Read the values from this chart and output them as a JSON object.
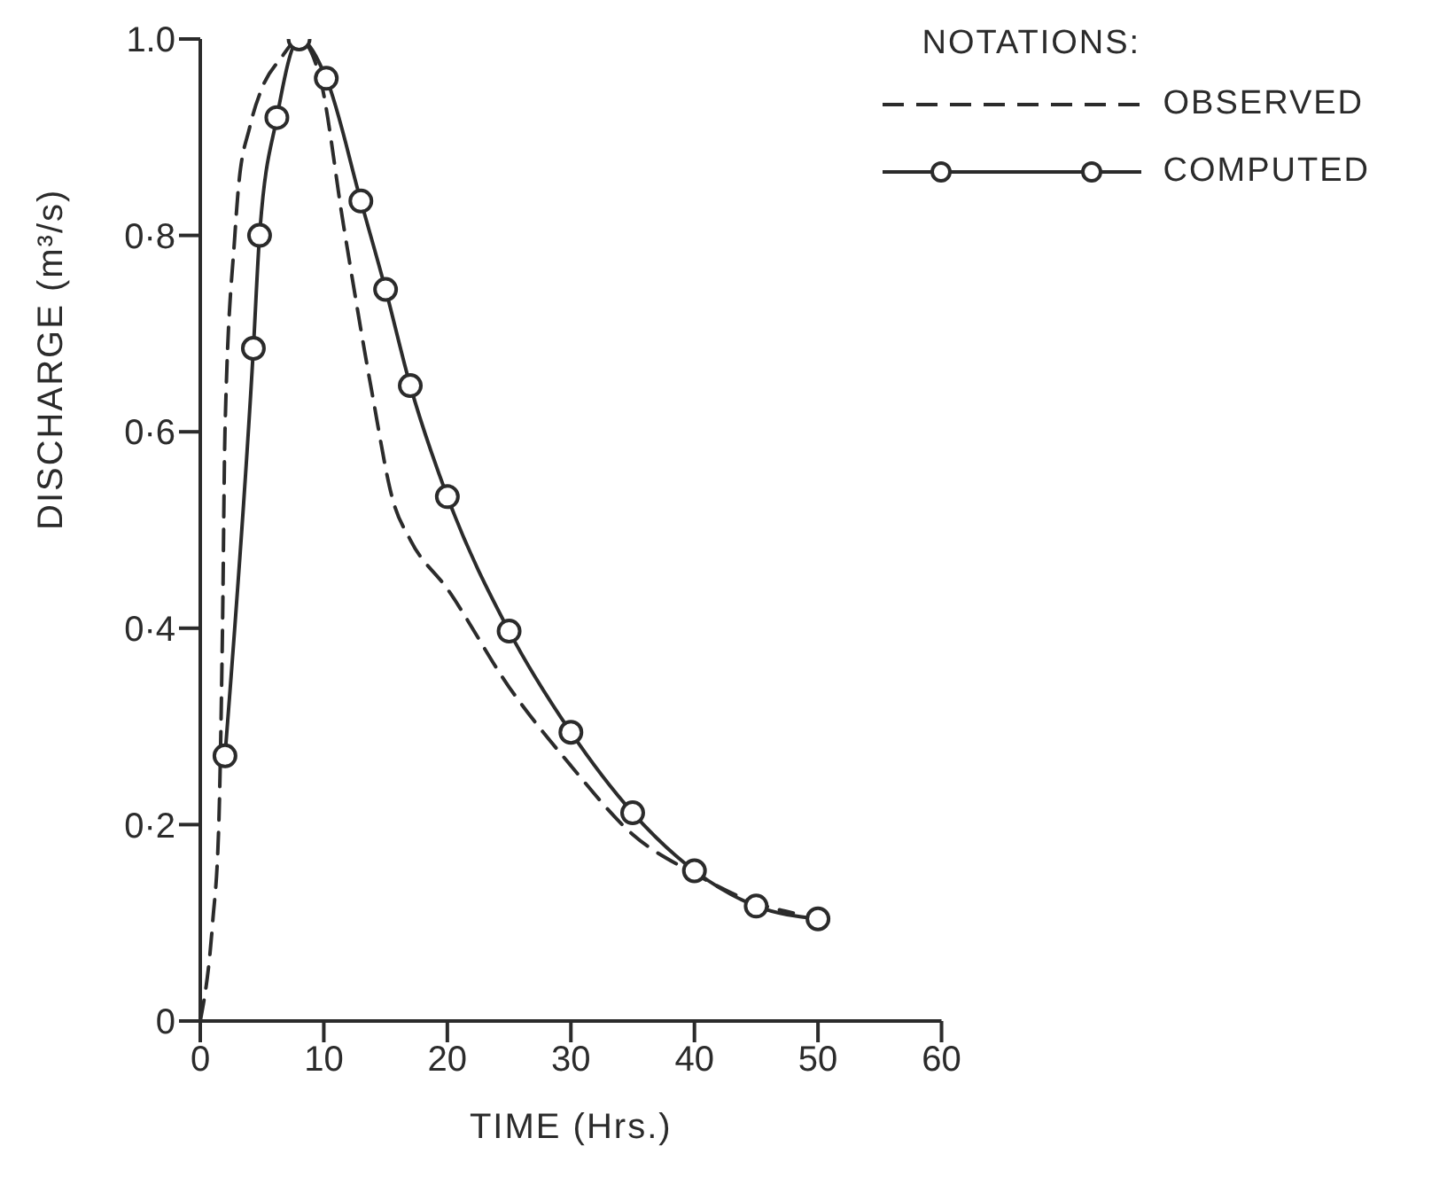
{
  "chart_data": {
    "type": "line",
    "xlabel": "TIME (Hrs.)",
    "ylabel": "DISCHARGE (m³/s)",
    "legend_title": "NOTATIONS:",
    "legend": "top right",
    "grid": false,
    "xlim": [
      0,
      60
    ],
    "xticks": [
      0,
      10,
      20,
      30,
      40,
      50,
      60
    ],
    "ylim": [
      0,
      1.0
    ],
    "yticks": [
      0,
      {
        "value": 0.2,
        "label": "0·2"
      },
      {
        "value": 0.4,
        "label": "0·4"
      },
      {
        "value": 0.6,
        "label": "0·6"
      },
      {
        "value": 0.8,
        "label": "0·8"
      },
      {
        "value": 1.0,
        "label": "1.0"
      }
    ],
    "series": [
      {
        "name": "OBSERVED",
        "color": "#2b2b2b",
        "line_style": "dashed",
        "marker": "none",
        "x": [
          0,
          1,
          1.5,
          1.8,
          2,
          2.8,
          3.1,
          4,
          5,
          6.5,
          8,
          9.7,
          11.6,
          13.9,
          15.6,
          17,
          20,
          25,
          30,
          35,
          40,
          45,
          48
        ],
        "values": [
          0,
          0.1,
          0.2,
          0.4,
          0.6,
          0.8,
          0.85,
          0.91,
          0.95,
          0.98,
          1.0,
          0.96,
          0.81,
          0.64,
          0.53,
          0.49,
          0.44,
          0.34,
          0.26,
          0.19,
          0.15,
          0.12,
          0.11
        ]
      },
      {
        "name": "COMPUTED",
        "color": "#2b2b2b",
        "line_style": "solid",
        "marker": "circle",
        "x": [
          2,
          4.3,
          4.8,
          6.2,
          8,
          10.2,
          13,
          15,
          17,
          20,
          25,
          30,
          35,
          40,
          45,
          50
        ],
        "values": [
          0.27,
          0.685,
          0.8,
          0.92,
          1.0,
          0.96,
          0.835,
          0.745,
          0.647,
          0.534,
          0.397,
          0.294,
          0.212,
          0.153,
          0.117,
          0.104
        ]
      }
    ]
  }
}
